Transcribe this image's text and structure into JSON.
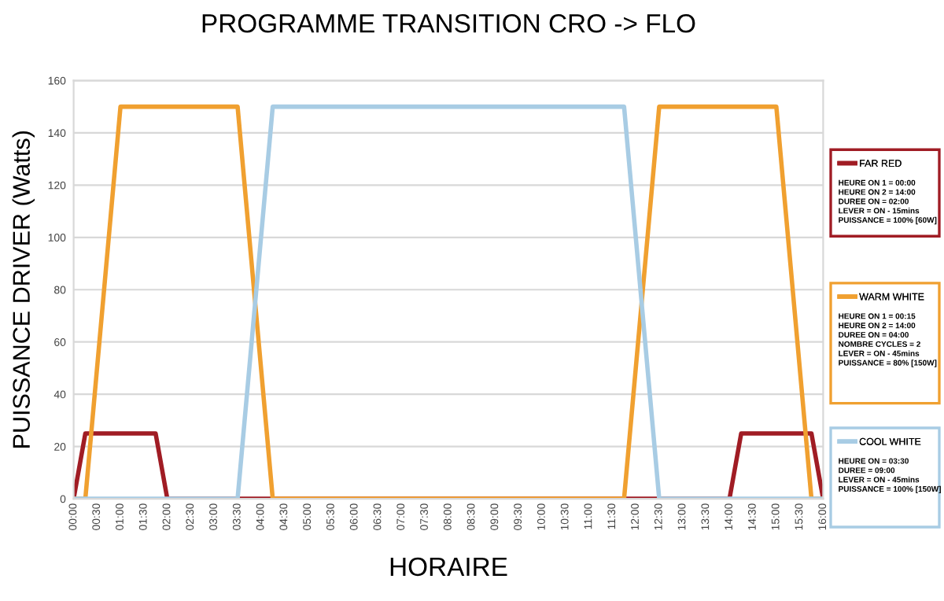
{
  "chart_data": {
    "type": "line",
    "title": "PROGRAMME TRANSITION CRO -> FLO",
    "xlabel": "HORAIRE",
    "ylabel": "PUISSANCE DRIVER (Watts)",
    "series": [
      {
        "name": "FAR RED",
        "color": "#a01c24",
        "x": [
          0,
          0.25,
          1.75,
          2,
          14,
          14.25,
          15.75,
          16
        ],
        "values": [
          0,
          25,
          25,
          0,
          0,
          25,
          25,
          0
        ]
      },
      {
        "name": "WARM WHITE",
        "color": "#f0a030",
        "x": [
          0,
          0.25,
          1,
          3.5,
          4.25,
          11.75,
          12.5,
          15,
          15.75,
          16
        ],
        "values": [
          0,
          0,
          150,
          150,
          0,
          0,
          150,
          150,
          0,
          0
        ]
      },
      {
        "name": "COOL WHITE",
        "color": "#a8cce4",
        "x": [
          0,
          3.5,
          4.25,
          11.75,
          12.5,
          16
        ],
        "values": [
          0,
          0,
          150,
          150,
          0,
          0
        ]
      }
    ],
    "annotations": [
      "HEURE ON 1 = 00:00\nHEURE ON 2 = 14:00\nDUREE ON = 02:00\nLEVER = ON - 15mins\nPUISSANCE = 100% [60W]",
      "HEURE ON 1 = 00:15\nHEURE ON 2 = 14:00\nDUREE ON = 04:00\nNOMBRE CYCLES = 2\nLEVER = ON - 45mins\nPUISSANCE = 80% [150W]",
      "HEURE ON = 03:30\nDUREE = 09:00\nLEVER = ON - 45mins\nPUISSANCE = 100% [150W]"
    ],
    "xlim": [
      0,
      16
    ],
    "ylim": [
      0,
      160
    ],
    "xticks": [
      {
        "value": 0,
        "label": "00:00"
      },
      {
        "value": 0.5,
        "label": "00:30"
      },
      {
        "value": 1,
        "label": "01:00"
      },
      {
        "value": 1.5,
        "label": "01:30"
      },
      {
        "value": 2,
        "label": "02:00"
      },
      {
        "value": 2.5,
        "label": "02:30"
      },
      {
        "value": 3,
        "label": "03:00"
      },
      {
        "value": 3.5,
        "label": "03:30"
      },
      {
        "value": 4,
        "label": "04:00"
      },
      {
        "value": 4.5,
        "label": "04:30"
      },
      {
        "value": 5,
        "label": "05:00"
      },
      {
        "value": 5.5,
        "label": "05:30"
      },
      {
        "value": 6,
        "label": "06:00"
      },
      {
        "value": 6.5,
        "label": "06:30"
      },
      {
        "value": 7,
        "label": "07:00"
      },
      {
        "value": 7.5,
        "label": "07:30"
      },
      {
        "value": 8,
        "label": "08:00"
      },
      {
        "value": 8.5,
        "label": "08:30"
      },
      {
        "value": 9,
        "label": "09:00"
      },
      {
        "value": 9.5,
        "label": "09:30"
      },
      {
        "value": 10,
        "label": "10:00"
      },
      {
        "value": 10.5,
        "label": "10:30"
      },
      {
        "value": 11,
        "label": "11:00"
      },
      {
        "value": 11.5,
        "label": "11:30"
      },
      {
        "value": 12,
        "label": "12:00"
      },
      {
        "value": 12.5,
        "label": "12:30"
      },
      {
        "value": 13,
        "label": "13:00"
      },
      {
        "value": 13.5,
        "label": "13:30"
      },
      {
        "value": 14,
        "label": "14:00"
      },
      {
        "value": 14.5,
        "label": "14:30"
      },
      {
        "value": 15,
        "label": "15:00"
      },
      {
        "value": 15.5,
        "label": "15:30"
      },
      {
        "value": 16,
        "label": "16:00"
      }
    ],
    "yticks": [
      0,
      20,
      40,
      60,
      80,
      100,
      120,
      140,
      160
    ],
    "grid": "y",
    "legend": "right",
    "marker": "none",
    "line_style": "solid"
  }
}
